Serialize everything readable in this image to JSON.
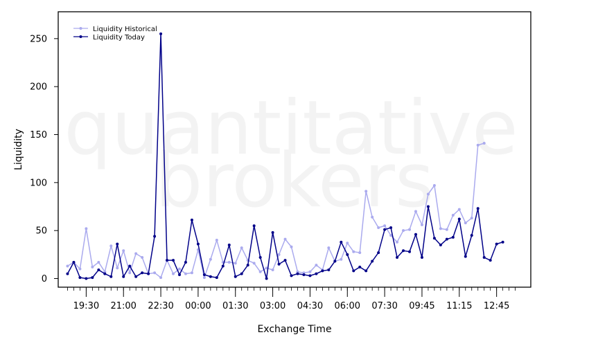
{
  "chart_data": {
    "type": "line",
    "title": "",
    "xlabel": "Exchange Time",
    "ylabel": "Liquidity",
    "ylim": [
      -9,
      278
    ],
    "y_ticks": [
      0,
      50,
      100,
      150,
      200,
      250
    ],
    "x_tick_labels": [
      "19:30",
      "21:00",
      "22:30",
      "00:00",
      "01:30",
      "03:00",
      "04:30",
      "06:00",
      "07:30",
      "09:45",
      "11:15",
      "12:45"
    ],
    "x_tick_positions": [
      3,
      9,
      15,
      21,
      27,
      33,
      39,
      45,
      51,
      57,
      63,
      69
    ],
    "x_range": [
      -1.5,
      74.5
    ],
    "grid": false,
    "legend_position": "top-left",
    "watermark": [
      "quantitative",
      "brokers"
    ],
    "series": [
      {
        "name": "Liquidity Historical",
        "color": "#aaaaee",
        "values": [
          13,
          17,
          10,
          52,
          12,
          17,
          7,
          34,
          11,
          29,
          6,
          26,
          22,
          5,
          6,
          1,
          19,
          5,
          10,
          5,
          6,
          30,
          1,
          20,
          40,
          17,
          17,
          16,
          32,
          19,
          16,
          7,
          11,
          9,
          25,
          41,
          33,
          7,
          6,
          7,
          14,
          9,
          32,
          18,
          20,
          37,
          28,
          27,
          91,
          64,
          53,
          55,
          45,
          38,
          50,
          51,
          70,
          56,
          88,
          97,
          52,
          51,
          66,
          72,
          58,
          63,
          139,
          141
        ]
      },
      {
        "name": "Liquidity Today",
        "color": "#000088",
        "values": [
          5,
          17,
          1,
          0,
          1,
          9,
          5,
          2,
          36,
          2,
          13,
          2,
          6,
          5,
          44,
          255,
          19,
          19,
          4,
          17,
          61,
          36,
          4,
          2,
          1,
          13,
          35,
          2,
          5,
          14,
          55,
          22,
          0,
          48,
          15,
          19,
          3,
          5,
          4,
          3,
          5,
          8,
          9,
          18,
          38,
          25,
          8,
          12,
          8,
          18,
          27,
          51,
          53,
          22,
          29,
          28,
          46,
          22,
          75,
          42,
          35,
          41,
          43,
          62,
          23,
          45,
          73,
          22,
          19,
          36,
          38
        ]
      }
    ]
  }
}
